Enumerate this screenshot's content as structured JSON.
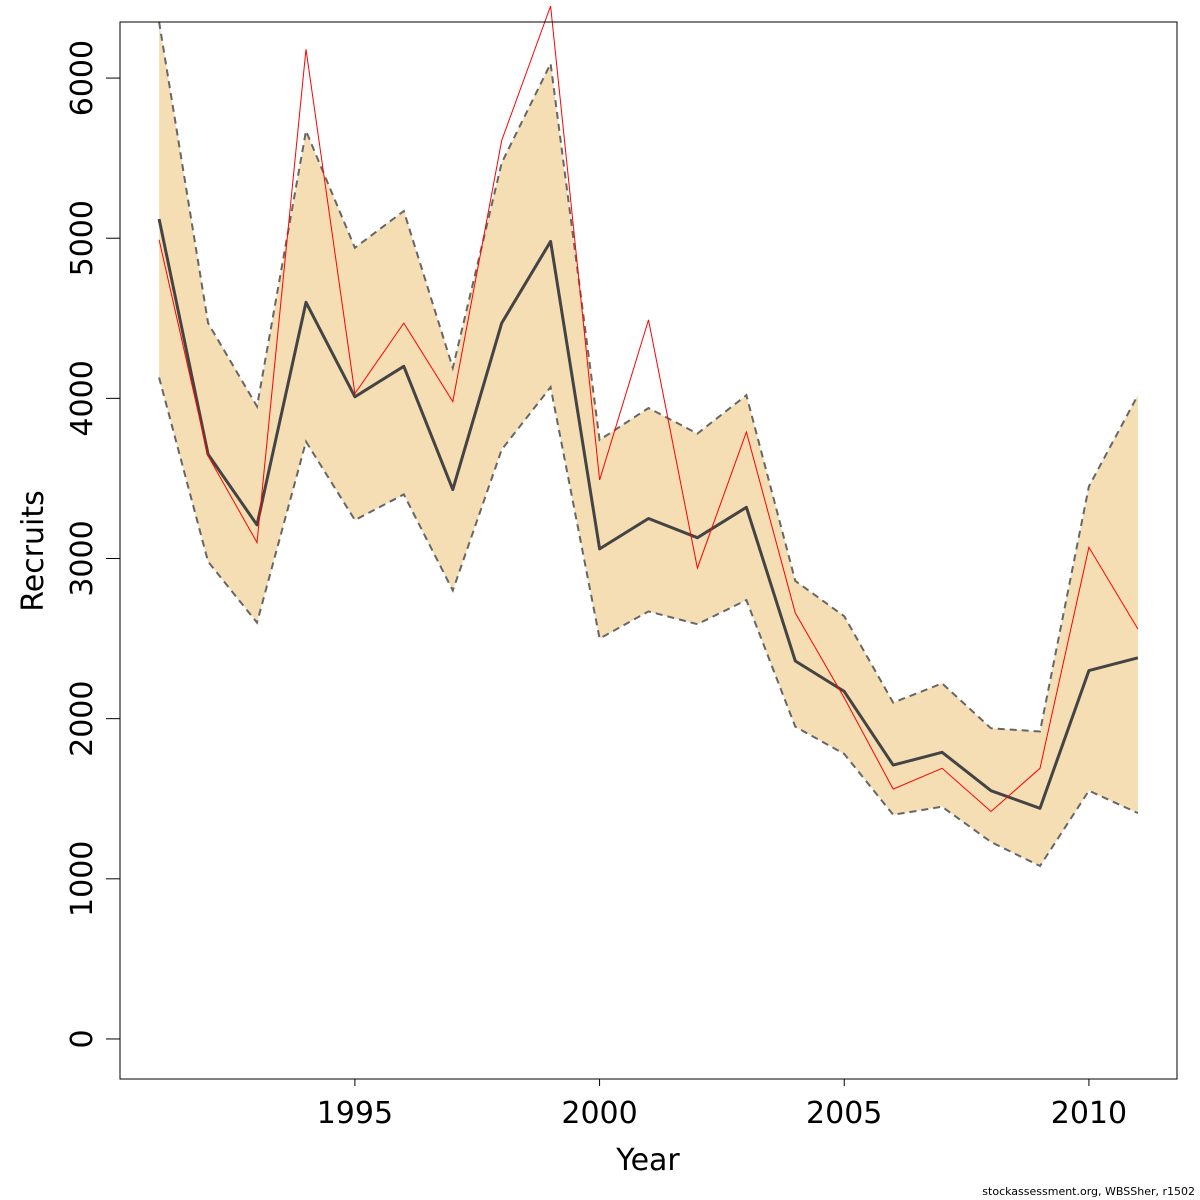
{
  "chart_data": {
    "type": "line",
    "xlabel": "Year",
    "ylabel": "Recruits",
    "xlim": [
      1990.2,
      2011.8
    ],
    "ylim": [
      -250,
      6350
    ],
    "x_ticks": [
      "1995",
      "2000",
      "2005",
      "2010"
    ],
    "y_ticks": [
      "0",
      "1000",
      "2000",
      "3000",
      "4000",
      "5000",
      "6000"
    ],
    "x": [
      1991,
      1992,
      1993,
      1994,
      1995,
      1996,
      1997,
      1998,
      1999,
      2000,
      2001,
      2002,
      2003,
      2004,
      2005,
      2006,
      2007,
      2008,
      2009,
      2010,
      2011
    ],
    "band_upper": [
      6350,
      4470,
      3950,
      5670,
      4940,
      5170,
      4190,
      5470,
      6090,
      3740,
      3940,
      3780,
      4020,
      2860,
      2640,
      2100,
      2220,
      1940,
      1920,
      3450,
      4020
    ],
    "band_lower": [
      4130,
      2980,
      2600,
      3730,
      3240,
      3400,
      2800,
      3680,
      4070,
      2500,
      2670,
      2590,
      2740,
      1950,
      1780,
      1400,
      1450,
      1230,
      1080,
      1550,
      1410
    ],
    "series": [
      {
        "values": [
          5120,
          3650,
          3210,
          4600,
          4010,
          4200,
          3430,
          4470,
          4980,
          3060,
          3250,
          3130,
          3320,
          2360,
          2170,
          1710,
          1790,
          1550,
          1440,
          2300,
          2380
        ]
      },
      {
        "values": [
          4990,
          3640,
          3100,
          6180,
          4030,
          4470,
          3980,
          5610,
          6450,
          3490,
          4490,
          2940,
          3790,
          2660,
          2130,
          1560,
          1690,
          1420,
          1690,
          3070,
          2560
        ]
      }
    ],
    "colors": {
      "band": "#f5deb3",
      "band_edge": "#666666",
      "estimate": "#444444",
      "observed": "#ff0000"
    }
  },
  "credit": "stockassessment.org, WBSSher, r1502"
}
